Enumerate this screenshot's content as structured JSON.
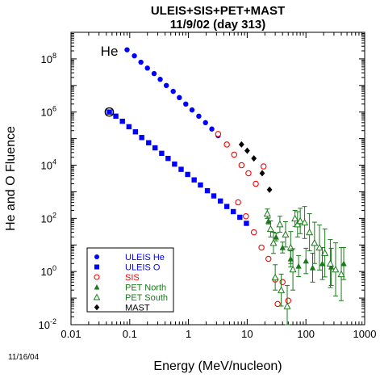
{
  "chart_data": {
    "type": "scatter",
    "title": "ULEIS+SIS+PET+MAST",
    "subtitle": "11/9/02 (day 313)",
    "xlabel": "Energy (MeV/nucleon)",
    "ylabel": "He and O Fluence",
    "xscale": "log",
    "yscale": "log",
    "xlim": [
      0.01,
      1000
    ],
    "ylim": [
      0.01,
      1000000000
    ],
    "grid": false,
    "legend_position": "bottom-left",
    "x_ticks": [
      "0.01",
      "0.1",
      "1",
      "10",
      "100",
      "1000"
    ],
    "y_ticks": [
      {
        "base": "10",
        "exp": "-2"
      },
      {
        "base": "10",
        "exp": "0"
      },
      {
        "base": "10",
        "exp": "2"
      },
      {
        "base": "10",
        "exp": "4"
      },
      {
        "base": "10",
        "exp": "6"
      },
      {
        "base": "10",
        "exp": "8"
      }
    ],
    "annotations": [
      {
        "text": "He",
        "x": 0.045,
        "y": 200000000
      },
      {
        "text": "O",
        "x": 0.045,
        "y": 1000000
      }
    ],
    "series": [
      {
        "name": "ULEIS He",
        "color": "#0000ff",
        "marker": "circle-filled",
        "points": [
          [
            0.09,
            220000000
          ],
          [
            0.12,
            130000000
          ],
          [
            0.155,
            75000000
          ],
          [
            0.2,
            45000000
          ],
          [
            0.26,
            28000000
          ],
          [
            0.33,
            17000000
          ],
          [
            0.42,
            10000000
          ],
          [
            0.55,
            6000000
          ],
          [
            0.7,
            3500000
          ],
          [
            0.9,
            2000000
          ],
          [
            1.15,
            1200000
          ],
          [
            1.5,
            700000
          ],
          [
            1.95,
            400000
          ],
          [
            2.5,
            230000
          ],
          [
            3.2,
            130000
          ]
        ]
      },
      {
        "name": "ULEIS O",
        "color": "#0000ff",
        "marker": "square-filled",
        "points": [
          [
            0.045,
            1000000
          ],
          [
            0.058,
            700000
          ],
          [
            0.075,
            450000
          ],
          [
            0.097,
            280000
          ],
          [
            0.125,
            180000
          ],
          [
            0.16,
            110000
          ],
          [
            0.21,
            70000
          ],
          [
            0.27,
            45000
          ],
          [
            0.35,
            28000
          ],
          [
            0.45,
            18000
          ],
          [
            0.58,
            11000
          ],
          [
            0.75,
            7000
          ],
          [
            0.97,
            4500
          ],
          [
            1.25,
            2800
          ],
          [
            1.6,
            1800
          ],
          [
            2.1,
            1100
          ],
          [
            2.7,
            700
          ],
          [
            3.5,
            450
          ],
          [
            4.5,
            280
          ],
          [
            5.8,
            180
          ],
          [
            7.5,
            110
          ],
          [
            9.7,
            65
          ]
        ]
      },
      {
        "name": "SIS",
        "color": "#ff0000",
        "marker": "circle-open",
        "points": [
          [
            3.2,
            150000
          ],
          [
            4.5,
            60000
          ],
          [
            6.0,
            25000
          ],
          [
            8.0,
            10000
          ],
          [
            10.5,
            5000
          ],
          [
            14.0,
            2000
          ],
          [
            19.0,
            9000
          ],
          [
            7.0,
            400
          ],
          [
            9.5,
            120
          ],
          [
            13.0,
            30
          ],
          [
            17.5,
            8
          ],
          [
            23.0,
            3
          ],
          [
            30.0,
            0.5
          ],
          [
            40.0,
            0.4
          ],
          [
            50.0,
            0.08
          ],
          [
            33.0,
            0.06
          ]
        ],
        "error_y": [
          0,
          0,
          0,
          0,
          0,
          0,
          0,
          0,
          0,
          0,
          0,
          0,
          0,
          0,
          0,
          0
        ]
      },
      {
        "name": "PET North",
        "color": "#1a7a1a",
        "marker": "triangle-filled",
        "points": [
          [
            23,
            80
          ],
          [
            31,
            20
          ],
          [
            40,
            8
          ],
          [
            55,
            3
          ],
          [
            75,
            1.6
          ],
          [
            100,
            2.5
          ],
          [
            130,
            1.4
          ],
          [
            190,
            2.0
          ],
          [
            270,
            1.5
          ],
          [
            440,
            2.0
          ]
        ],
        "error_y_factor": [
          1.3,
          1.4,
          1.6,
          2.0,
          2.5,
          3.0,
          3.5,
          4.0,
          5.0,
          4.0
        ]
      },
      {
        "name": "PET South",
        "color": "#1a7a1a",
        "marker": "triangle-open",
        "points": [
          [
            22,
            150
          ],
          [
            25,
            40
          ],
          [
            28,
            12
          ],
          [
            36,
            60
          ],
          [
            45,
            25
          ],
          [
            55,
            8
          ],
          [
            65,
            100
          ],
          [
            72,
            60
          ],
          [
            80,
            80
          ],
          [
            95,
            70
          ],
          [
            115,
            30
          ],
          [
            140,
            12
          ],
          [
            170,
            8
          ],
          [
            210,
            5
          ],
          [
            260,
            2
          ],
          [
            320,
            1.2
          ],
          [
            400,
            0.8
          ],
          [
            30,
            0.6
          ],
          [
            38,
            0.2
          ],
          [
            48,
            0.05
          ],
          [
            60,
            1.2
          ]
        ],
        "error_y_factor": [
          1.5,
          2.0,
          2.5,
          2.0,
          3.0,
          4.0,
          2.0,
          3.0,
          3.0,
          4.0,
          5.0,
          6.0,
          7.0,
          8.0,
          8.0,
          10.0,
          10.0,
          3.0,
          4.0,
          6.0,
          6.0
        ]
      },
      {
        "name": "MAST",
        "color": "#000000",
        "marker": "diamond-filled",
        "points": [
          [
            8,
            60000
          ],
          [
            10,
            35000
          ],
          [
            13,
            18000
          ],
          [
            18,
            5000
          ],
          [
            24,
            1200
          ]
        ]
      }
    ]
  },
  "datestamp": "11/16/04"
}
